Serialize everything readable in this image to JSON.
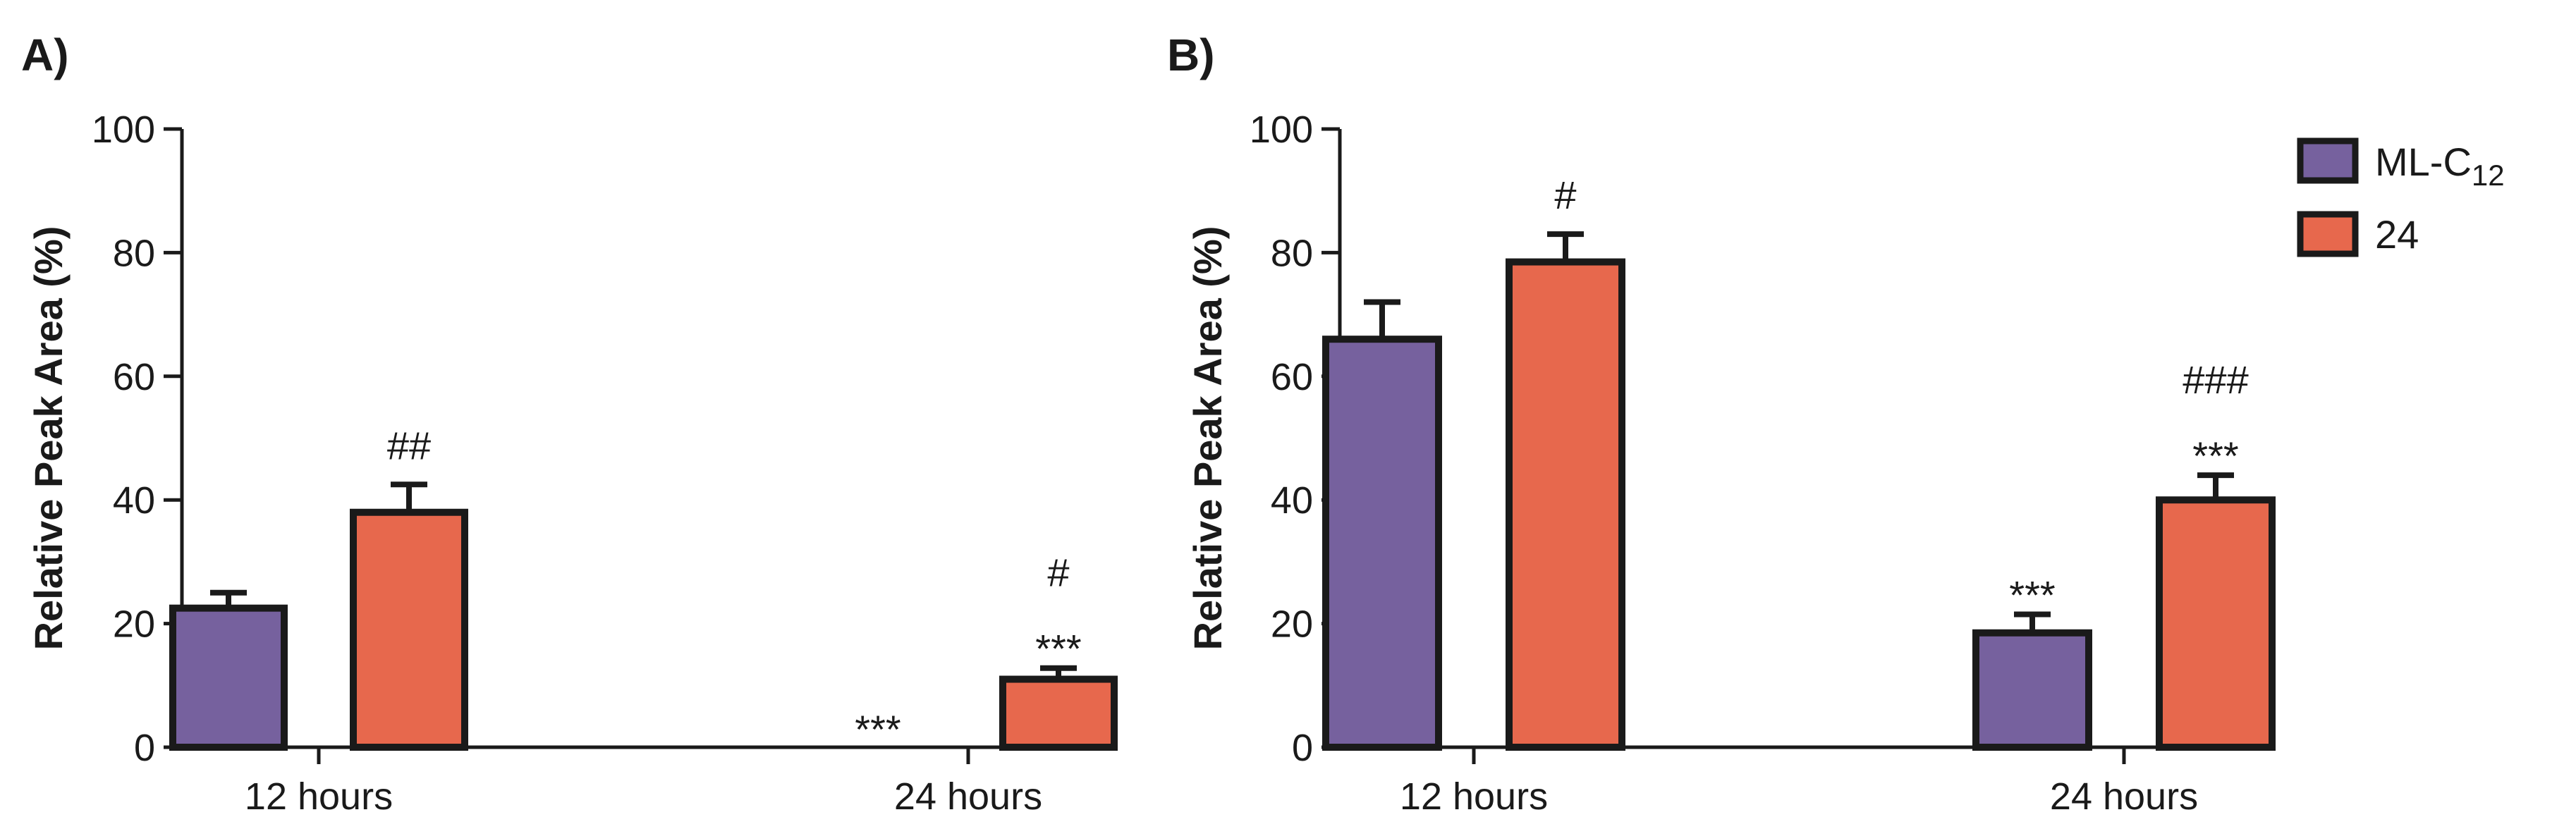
{
  "colors": {
    "ml_c12": "#76619e",
    "c24": "#e7684d"
  },
  "legend": [
    {
      "label_main": "ML-C",
      "label_sub": "12",
      "color": "#76619e"
    },
    {
      "label_main": "24",
      "label_sub": "",
      "color": "#e7684d"
    }
  ],
  "chart_data": [
    {
      "panel": "A)",
      "type": "bar",
      "ylabel": "Relative Peak Area (%)",
      "ylim": [
        0,
        100
      ],
      "yticks": [
        0,
        20,
        40,
        60,
        80,
        100
      ],
      "categories": [
        "12 hours",
        "24 hours"
      ],
      "series": [
        {
          "name": "ML-C12",
          "values": [
            22.5,
            0
          ],
          "errors": [
            2.5,
            0
          ],
          "annotations": [
            [],
            [
              "***"
            ]
          ]
        },
        {
          "name": "24",
          "values": [
            38,
            11
          ],
          "errors": [
            4.5,
            1.8
          ],
          "annotations": [
            [
              "##"
            ],
            [
              "***",
              "#"
            ]
          ]
        }
      ]
    },
    {
      "panel": "B)",
      "type": "bar",
      "ylabel": "Relative Peak Area (%)",
      "ylim": [
        0,
        100
      ],
      "yticks": [
        0,
        20,
        40,
        60,
        80,
        100
      ],
      "categories": [
        "12 hours",
        "24 hours"
      ],
      "series": [
        {
          "name": "ML-C12",
          "values": [
            66,
            18.5
          ],
          "errors": [
            6,
            3
          ],
          "annotations": [
            [],
            [
              "***"
            ]
          ]
        },
        {
          "name": "24",
          "values": [
            78.5,
            40
          ],
          "errors": [
            4.5,
            4
          ],
          "annotations": [
            [
              "#"
            ],
            [
              "***",
              "###"
            ]
          ]
        }
      ]
    }
  ]
}
